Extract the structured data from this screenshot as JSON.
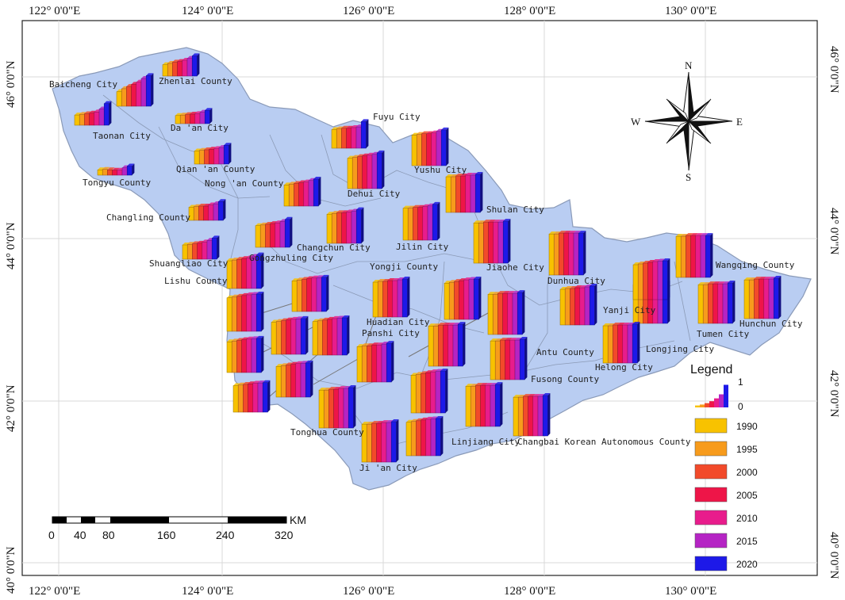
{
  "map": {
    "lon_labels": [
      "122° 0'0\"E",
      "124° 0'0\"E",
      "126° 0'0\"E",
      "128° 0'0\"E",
      "130° 0'0\"E"
    ],
    "lat_labels": [
      "46° 0'0\"N",
      "44° 0'0\"N",
      "42° 0'0\"N",
      "40° 0'0\"N"
    ],
    "region_fill": "#b9cdf2",
    "region_stroke": "#8a9ab8"
  },
  "places": [
    "Baicheng City",
    "Zhenlai County",
    "Taonan City",
    "Da 'an City",
    "Tongyu County",
    "Qian 'an County",
    "Nong 'an County",
    "Fuyu City",
    "Yushu City",
    "Dehui City",
    "Changling County",
    "Shulan City",
    "Changchun City",
    "Jilin City",
    "Shuangliao City",
    "Gongzhuling City",
    "Lishu County",
    "Yongji County",
    "Jiaohe City",
    "Dunhua City",
    "Wangqing County",
    "Yanji City",
    "Huadian City",
    "Panshi City",
    "Hunchun City",
    "Tumen City",
    "Antu County",
    "Longjing City",
    "Helong City",
    "Fusong County",
    "Tonghua County",
    "Linjiang City",
    "Changbai Korean Autonomous County",
    "Ji 'an City"
  ],
  "compass": {
    "n": "N",
    "s": "S",
    "e": "E",
    "w": "W"
  },
  "legend": {
    "title": "Legend",
    "scale_max": "1",
    "scale_min": "0",
    "items": [
      {
        "label": "1990",
        "color": "#f8c200"
      },
      {
        "label": "1995",
        "color": "#f79b1c"
      },
      {
        "label": "2000",
        "color": "#f24a2a"
      },
      {
        "label": "2005",
        "color": "#ee1548"
      },
      {
        "label": "2010",
        "color": "#e81c8c"
      },
      {
        "label": "2015",
        "color": "#b524c4"
      },
      {
        "label": "2020",
        "color": "#1d19e8"
      }
    ]
  },
  "scale_bar": {
    "unit": "KM",
    "ticks": [
      "0",
      "40",
      "80",
      "160",
      "240",
      "320"
    ]
  },
  "chart_data": {
    "type": "bar",
    "categories": [
      "1990",
      "1995",
      "2000",
      "2005",
      "2010",
      "2015",
      "2020"
    ],
    "ylim": [
      0,
      1
    ],
    "series": [
      {
        "name": "Zhenlai County",
        "values": [
          0.36,
          0.4,
          0.44,
          0.46,
          0.5,
          0.56,
          0.64
        ]
      },
      {
        "name": "Baicheng City",
        "values": [
          0.4,
          0.48,
          0.54,
          0.6,
          0.66,
          0.76,
          0.84
        ]
      },
      {
        "name": "Taonan City",
        "values": [
          0.34,
          0.36,
          0.38,
          0.4,
          0.44,
          0.54,
          0.72
        ]
      },
      {
        "name": "Da 'an City",
        "values": [
          0.34,
          0.36,
          0.38,
          0.4,
          0.42,
          0.48,
          0.56
        ]
      },
      {
        "name": "Tongyu County",
        "values": [
          0.26,
          0.28,
          0.26,
          0.24,
          0.24,
          0.36,
          0.44
        ]
      },
      {
        "name": "Qian 'an County",
        "values": [
          0.46,
          0.48,
          0.5,
          0.52,
          0.54,
          0.58,
          0.66
        ]
      },
      {
        "name": "Nong 'an County",
        "values": [
          0.58,
          0.6,
          0.62,
          0.64,
          0.66,
          0.7,
          0.74
        ]
      },
      {
        "name": "Fuyu City",
        "values": [
          0.56,
          0.58,
          0.6,
          0.6,
          0.62,
          0.64,
          0.8
        ]
      },
      {
        "name": "Yushu City",
        "values": [
          0.8,
          0.82,
          0.84,
          0.84,
          0.86,
          0.9,
          0.94
        ]
      },
      {
        "name": "Dehui City",
        "values": [
          0.8,
          0.82,
          0.84,
          0.86,
          0.88,
          0.9,
          0.94
        ]
      },
      {
        "name": "Changling County",
        "values": [
          0.46,
          0.48,
          0.5,
          0.5,
          0.54,
          0.58,
          0.66
        ]
      },
      {
        "name": "Shulan City",
        "values": [
          0.9,
          0.9,
          0.92,
          0.92,
          0.94,
          0.94,
          0.96
        ]
      },
      {
        "name": "Changchun City",
        "values": [
          0.8,
          0.82,
          0.84,
          0.84,
          0.86,
          0.88,
          0.92
        ]
      },
      {
        "name": "Jilin City",
        "values": [
          0.84,
          0.84,
          0.86,
          0.86,
          0.88,
          0.9,
          0.94
        ]
      },
      {
        "name": "Shuangliao City",
        "values": [
          0.5,
          0.52,
          0.54,
          0.56,
          0.6,
          0.66,
          0.74
        ]
      },
      {
        "name": "Gongzhuling City",
        "values": [
          0.62,
          0.64,
          0.66,
          0.68,
          0.7,
          0.74,
          0.8
        ]
      },
      {
        "name": "Lishu County",
        "values": [
          0.76,
          0.78,
          0.8,
          0.82,
          0.84,
          0.88,
          0.92
        ]
      },
      {
        "name": "Yongji County",
        "values": [
          0.88,
          0.9,
          0.9,
          0.92,
          0.92,
          0.94,
          0.96
        ]
      },
      {
        "name": "Jiaohe City",
        "values": [
          0.94,
          0.94,
          0.96,
          0.96,
          0.96,
          0.96,
          0.98
        ]
      },
      {
        "name": "Dunhua City",
        "values": [
          0.96,
          0.96,
          0.98,
          0.98,
          0.98,
          0.98,
          0.98
        ]
      },
      {
        "name": "Wangqing County",
        "values": [
          0.96,
          0.96,
          0.98,
          0.98,
          0.98,
          0.98,
          0.98
        ]
      },
      {
        "name": "Yanji City",
        "values": [
          0.9,
          0.92,
          0.92,
          0.94,
          0.94,
          0.96,
          0.98
        ]
      },
      {
        "name": "Huadian City",
        "values": [
          0.94,
          0.94,
          0.96,
          0.96,
          0.96,
          0.96,
          0.98
        ]
      },
      {
        "name": "Panshi City",
        "values": [
          0.86,
          0.88,
          0.88,
          0.9,
          0.9,
          0.92,
          0.94
        ]
      },
      {
        "name": "Hunchun City",
        "values": [
          0.94,
          0.94,
          0.96,
          0.96,
          0.96,
          0.96,
          0.98
        ]
      },
      {
        "name": "Tumen City",
        "values": [
          0.94,
          0.94,
          0.96,
          0.96,
          0.96,
          0.96,
          0.98
        ]
      },
      {
        "name": "Antu County",
        "values": [
          0.94,
          0.94,
          0.96,
          0.96,
          0.96,
          0.96,
          0.98
        ]
      },
      {
        "name": "Longjing City",
        "values": [
          0.94,
          0.94,
          0.96,
          0.96,
          0.96,
          0.96,
          0.98
        ]
      },
      {
        "name": "Helong City",
        "values": [
          0.94,
          0.94,
          0.96,
          0.96,
          0.96,
          0.96,
          0.98
        ]
      },
      {
        "name": "Fusong County",
        "values": [
          0.94,
          0.94,
          0.96,
          0.96,
          0.96,
          0.96,
          0.98
        ]
      },
      {
        "name": "Tonghua County",
        "values": [
          0.92,
          0.92,
          0.94,
          0.94,
          0.96,
          0.96,
          0.98
        ]
      },
      {
        "name": "Linjiang City",
        "values": [
          0.94,
          0.94,
          0.96,
          0.96,
          0.96,
          0.96,
          0.98
        ]
      },
      {
        "name": "Changbai Korean Autonomous County",
        "values": [
          0.94,
          0.94,
          0.96,
          0.96,
          0.96,
          0.96,
          0.98
        ]
      },
      {
        "name": "Ji 'an City",
        "values": [
          0.92,
          0.92,
          0.94,
          0.94,
          0.96,
          0.96,
          0.98
        ]
      }
    ]
  }
}
